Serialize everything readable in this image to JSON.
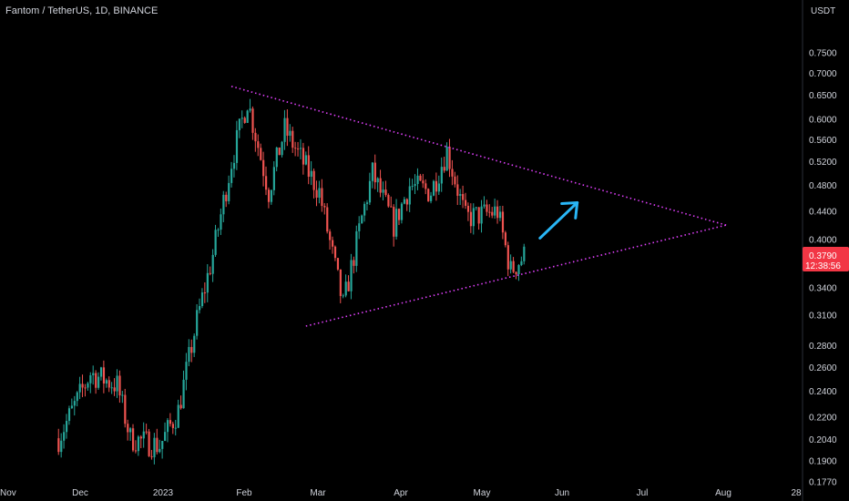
{
  "header": {
    "symbol": "Fantom / TetherUS",
    "interval": "1D",
    "exchange": "BINANCE",
    "title": "Fantom / TetherUS, 1D, BINANCE"
  },
  "price_scale": {
    "currency": "USDT",
    "last_price": "0.3790",
    "countdown": "12:38:56"
  },
  "colors": {
    "background": "#000000",
    "up": "#26a69a",
    "down": "#ef5350",
    "trendline": "#e040fb",
    "arrow": "#29b6f6",
    "label_bg": "#f23645",
    "text": "#d1d4dc"
  },
  "chart_data": {
    "type": "candlestick",
    "y_scale": "log",
    "y_ticks": [
      "0.7500",
      "0.7000",
      "0.6500",
      "0.6000",
      "0.5600",
      "0.5200",
      "0.4800",
      "0.4400",
      "0.4000",
      "0.3400",
      "0.3100",
      "0.2800",
      "0.2600",
      "0.2400",
      "0.2200",
      "0.2040",
      "0.1900",
      "0.1770"
    ],
    "x_ticks": [
      "Nov",
      "Dec",
      "2023",
      "Feb",
      "Mar",
      "Apr",
      "May",
      "Jun",
      "Jul",
      "Aug",
      "28"
    ],
    "ohlc_anchor_closes": [
      [
        "2022-11-23",
        0.205
      ],
      [
        "2022-12-05",
        0.255
      ],
      [
        "2022-12-15",
        0.245
      ],
      [
        "2022-12-20",
        0.205
      ],
      [
        "2022-12-31",
        0.2
      ],
      [
        "2023-01-07",
        0.225
      ],
      [
        "2023-01-14",
        0.305
      ],
      [
        "2023-01-20",
        0.38
      ],
      [
        "2023-01-27",
        0.52
      ],
      [
        "2023-02-02",
        0.64
      ],
      [
        "2023-02-10",
        0.47
      ],
      [
        "2023-02-16",
        0.58
      ],
      [
        "2023-03-01",
        0.47
      ],
      [
        "2023-03-10",
        0.32
      ],
      [
        "2023-03-17",
        0.43
      ],
      [
        "2023-03-21",
        0.5
      ],
      [
        "2023-03-29",
        0.42
      ],
      [
        "2023-04-04",
        0.48
      ],
      [
        "2023-04-12",
        0.47
      ],
      [
        "2023-04-18",
        0.54
      ],
      [
        "2023-04-25",
        0.43
      ],
      [
        "2023-05-07",
        0.44
      ],
      [
        "2023-05-12",
        0.36
      ],
      [
        "2023-05-17",
        0.379
      ]
    ],
    "annotations": {
      "upper_trendline": [
        [
          "2023-01-27",
          0.67
        ],
        [
          "2023-08-01",
          0.42
        ]
      ],
      "lower_trendline": [
        [
          "2023-02-24",
          0.299
        ],
        [
          "2023-08-01",
          0.42
        ]
      ],
      "arrow": [
        [
          "2023-05-23",
          0.402
        ],
        [
          "2023-06-06",
          0.453
        ]
      ]
    }
  }
}
